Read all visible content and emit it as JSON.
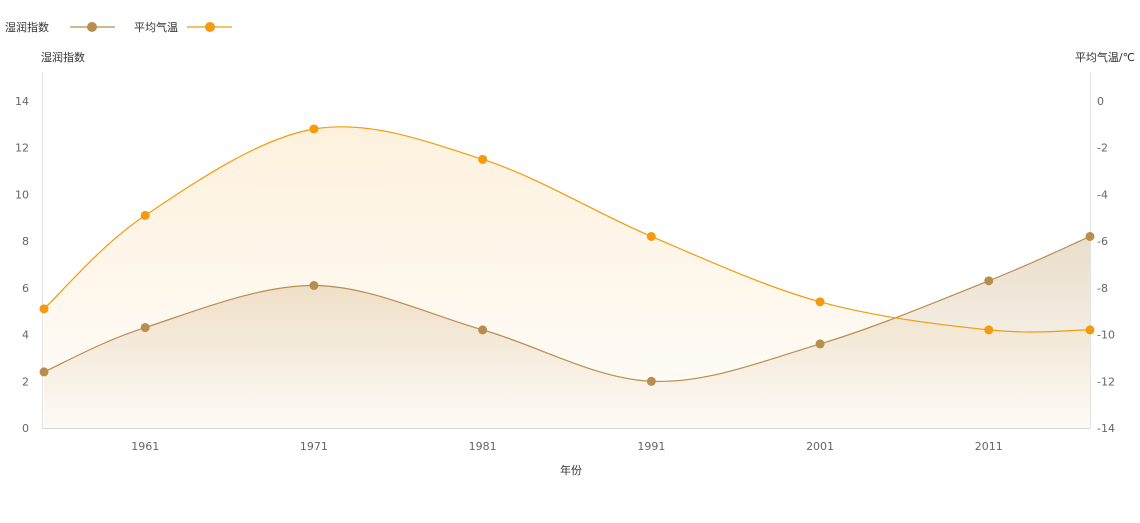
{
  "chart_data": {
    "type": "line",
    "smooth": true,
    "grid": false,
    "legend": "top-left",
    "x": [
      1955,
      1961,
      1971,
      1981,
      1991,
      2001,
      2011,
      2017
    ],
    "xlim": [
      1955,
      2017
    ],
    "xticks": [
      1961,
      1971,
      1981,
      1991,
      2001,
      2011
    ],
    "xlabel": "年份",
    "y_left": {
      "label": "湿润指数",
      "lim": [
        0,
        15
      ],
      "ticks": [
        0,
        2,
        4,
        6,
        8,
        10,
        12,
        14
      ]
    },
    "y_right": {
      "label": "平均气温/℃",
      "lim": [
        -14,
        1
      ],
      "ticks": [
        0,
        -2,
        -4,
        -6,
        -8,
        -10,
        -12,
        -14
      ]
    },
    "series": [
      {
        "name": "湿润指数",
        "axis": "left",
        "color": "#b88e4f",
        "values": [
          2.4,
          4.3,
          6.1,
          4.2,
          2.0,
          3.6,
          6.3,
          8.2
        ]
      },
      {
        "name": "平均气温",
        "axis": "right",
        "color": "#f29b0e",
        "values": [
          -8.9,
          -4.9,
          -1.2,
          -2.5,
          -5.8,
          -8.6,
          -9.8,
          -9.8
        ]
      }
    ]
  }
}
